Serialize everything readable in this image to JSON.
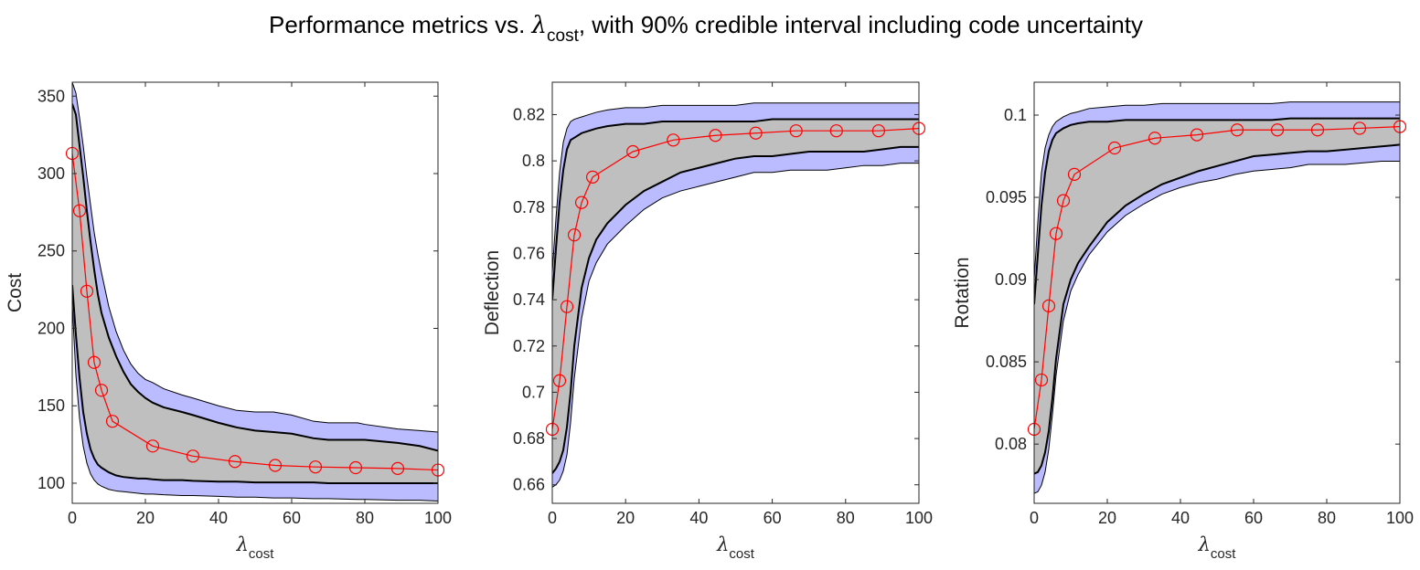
{
  "figure": {
    "title_prefix": "Performance metrics vs. ",
    "title_symbol": "λ",
    "title_subscript": "cost",
    "title_suffix": ", with 90% credible interval including code uncertainty"
  },
  "colors": {
    "outer_band": "#bbbbff",
    "inner_band": "#bfbfbf",
    "band_edge": "#000000",
    "mean_line": "#ff0000"
  },
  "chart_data": [
    {
      "type": "area",
      "xlabel_symbol": "λ",
      "xlabel_subscript": "cost",
      "ylabel": "Cost",
      "xlim": [
        0,
        100
      ],
      "ylim": [
        87,
        359
      ],
      "xticks": [
        0,
        20,
        40,
        60,
        80,
        100
      ],
      "yticks": [
        100,
        150,
        200,
        250,
        300,
        350
      ],
      "x": [
        0,
        1,
        2,
        3,
        4,
        5,
        6,
        7,
        8,
        10,
        12,
        14,
        16,
        18,
        20,
        22,
        25,
        30,
        33,
        40,
        45,
        50,
        55,
        60,
        66,
        70,
        78,
        80,
        89,
        95,
        100
      ],
      "outer_upper": [
        359,
        352,
        336,
        318,
        298,
        280,
        262,
        248,
        236,
        214,
        198,
        186,
        177,
        171,
        167,
        165,
        161,
        157,
        155,
        150,
        147,
        146,
        146,
        144,
        140,
        139,
        139,
        138,
        135,
        134,
        133
      ],
      "inner_upper": [
        345,
        338,
        318,
        298,
        276,
        256,
        238,
        222,
        210,
        194,
        182,
        172,
        164,
        159,
        155,
        152,
        149,
        146,
        144,
        139,
        136,
        134,
        133,
        132,
        129,
        128,
        128,
        128,
        126,
        124,
        121
      ],
      "inner_lower": [
        228,
        196,
        168,
        146,
        132,
        122,
        116,
        112,
        110,
        107,
        105,
        104,
        103.5,
        103,
        103,
        102.5,
        102,
        102,
        101.5,
        101,
        101,
        100.5,
        100.5,
        100.5,
        100.5,
        100,
        100,
        100,
        100,
        100,
        100
      ],
      "outer_lower": [
        216,
        170,
        142,
        124,
        113,
        106,
        102,
        99.5,
        98,
        96,
        95,
        94.5,
        94,
        93.5,
        93,
        93,
        92.5,
        92,
        92,
        91.5,
        91,
        91,
        90.5,
        90.5,
        90,
        90,
        89.5,
        89.5,
        89,
        89,
        88.5
      ],
      "mean_x": [
        0,
        2,
        4,
        6,
        8,
        11,
        22,
        33,
        44.5,
        55.5,
        66.5,
        77.5,
        89,
        100
      ],
      "mean_y": [
        313,
        276,
        224,
        178,
        160,
        140,
        124,
        117.5,
        114,
        111.5,
        110.5,
        110,
        109.5,
        108.5
      ]
    },
    {
      "type": "area",
      "xlabel_symbol": "λ",
      "xlabel_subscript": "cost",
      "ylabel": "Deflection",
      "xlim": [
        0,
        100
      ],
      "ylim": [
        0.652,
        0.834
      ],
      "xticks": [
        0,
        20,
        40,
        60,
        80,
        100
      ],
      "yticks": [
        0.66,
        0.68,
        0.7,
        0.72,
        0.74,
        0.76,
        0.78,
        0.8,
        0.82
      ],
      "x": [
        0,
        1,
        2,
        3,
        4,
        5,
        6,
        8,
        10,
        12,
        15,
        20,
        25,
        30,
        35,
        40,
        45,
        50,
        55,
        60,
        65,
        70,
        75,
        80,
        85,
        90,
        95,
        100
      ],
      "outer_upper": [
        0.752,
        0.775,
        0.795,
        0.808,
        0.814,
        0.817,
        0.818,
        0.819,
        0.82,
        0.821,
        0.822,
        0.823,
        0.823,
        0.824,
        0.824,
        0.824,
        0.824,
        0.824,
        0.825,
        0.825,
        0.825,
        0.825,
        0.825,
        0.825,
        0.825,
        0.825,
        0.825,
        0.825
      ],
      "inner_upper": [
        0.74,
        0.762,
        0.782,
        0.796,
        0.805,
        0.809,
        0.81,
        0.812,
        0.813,
        0.814,
        0.815,
        0.816,
        0.816,
        0.817,
        0.817,
        0.817,
        0.817,
        0.817,
        0.817,
        0.818,
        0.818,
        0.818,
        0.818,
        0.818,
        0.818,
        0.818,
        0.818,
        0.818
      ],
      "inner_lower": [
        0.665,
        0.667,
        0.67,
        0.675,
        0.685,
        0.7,
        0.72,
        0.745,
        0.758,
        0.766,
        0.773,
        0.781,
        0.787,
        0.791,
        0.795,
        0.797,
        0.799,
        0.801,
        0.802,
        0.802,
        0.803,
        0.804,
        0.804,
        0.804,
        0.804,
        0.805,
        0.806,
        0.806
      ],
      "outer_lower": [
        0.659,
        0.66,
        0.662,
        0.666,
        0.673,
        0.687,
        0.706,
        0.732,
        0.748,
        0.756,
        0.764,
        0.772,
        0.779,
        0.784,
        0.787,
        0.789,
        0.791,
        0.793,
        0.795,
        0.795,
        0.796,
        0.796,
        0.796,
        0.797,
        0.798,
        0.798,
        0.799,
        0.799
      ],
      "mean_x": [
        0,
        2,
        4,
        6,
        8,
        11,
        22,
        33,
        44.5,
        55.5,
        66.5,
        77.5,
        89,
        100
      ],
      "mean_y": [
        0.684,
        0.705,
        0.737,
        0.768,
        0.782,
        0.793,
        0.804,
        0.809,
        0.811,
        0.812,
        0.813,
        0.813,
        0.813,
        0.814
      ]
    },
    {
      "type": "area",
      "xlabel_symbol": "λ",
      "xlabel_subscript": "cost",
      "ylabel": "Rotation",
      "xlim": [
        0,
        100
      ],
      "ylim": [
        0.0764,
        0.102
      ],
      "xticks": [
        0,
        20,
        40,
        60,
        80,
        100
      ],
      "yticks": [
        0.08,
        0.085,
        0.09,
        0.095,
        0.1
      ],
      "x": [
        0,
        1,
        2,
        3,
        4,
        5,
        6,
        8,
        10,
        12,
        15,
        20,
        25,
        30,
        35,
        40,
        45,
        50,
        55,
        60,
        65,
        70,
        75,
        80,
        85,
        90,
        95,
        100
      ],
      "outer_upper": [
        0.09,
        0.0935,
        0.0965,
        0.098,
        0.0988,
        0.0993,
        0.0996,
        0.0999,
        0.1001,
        0.1002,
        0.1004,
        0.1005,
        0.1006,
        0.1006,
        0.1007,
        0.1007,
        0.1007,
        0.1007,
        0.1007,
        0.1007,
        0.1007,
        0.1008,
        0.1008,
        0.1008,
        0.1008,
        0.1008,
        0.1008,
        0.1008
      ],
      "inner_upper": [
        0.0885,
        0.0915,
        0.0945,
        0.0965,
        0.0978,
        0.0985,
        0.0989,
        0.0992,
        0.0994,
        0.0995,
        0.0996,
        0.0996,
        0.0997,
        0.0997,
        0.0997,
        0.0997,
        0.0997,
        0.0997,
        0.0997,
        0.0997,
        0.0997,
        0.0998,
        0.0998,
        0.0998,
        0.0998,
        0.0998,
        0.0998,
        0.0998
      ],
      "inner_lower": [
        0.0782,
        0.0783,
        0.0787,
        0.0795,
        0.0808,
        0.0828,
        0.0852,
        0.0885,
        0.09,
        0.091,
        0.092,
        0.0935,
        0.0945,
        0.0952,
        0.0958,
        0.0962,
        0.0966,
        0.0969,
        0.0972,
        0.0975,
        0.0976,
        0.0977,
        0.0978,
        0.0978,
        0.0979,
        0.098,
        0.0981,
        0.0982
      ],
      "outer_lower": [
        0.077,
        0.0771,
        0.0775,
        0.0783,
        0.0797,
        0.0818,
        0.0842,
        0.0875,
        0.0893,
        0.0903,
        0.0915,
        0.0929,
        0.0939,
        0.0946,
        0.0952,
        0.0956,
        0.0959,
        0.0961,
        0.0964,
        0.0966,
        0.0967,
        0.0968,
        0.097,
        0.097,
        0.097,
        0.0971,
        0.0972,
        0.0972
      ],
      "mean_x": [
        0,
        2,
        4,
        6,
        8,
        11,
        22,
        33,
        44.5,
        55.5,
        66.5,
        77.5,
        89,
        100
      ],
      "mean_y": [
        0.0809,
        0.0839,
        0.0884,
        0.0928,
        0.0948,
        0.0964,
        0.098,
        0.0986,
        0.0988,
        0.0991,
        0.0991,
        0.0991,
        0.0992,
        0.0993
      ]
    }
  ]
}
